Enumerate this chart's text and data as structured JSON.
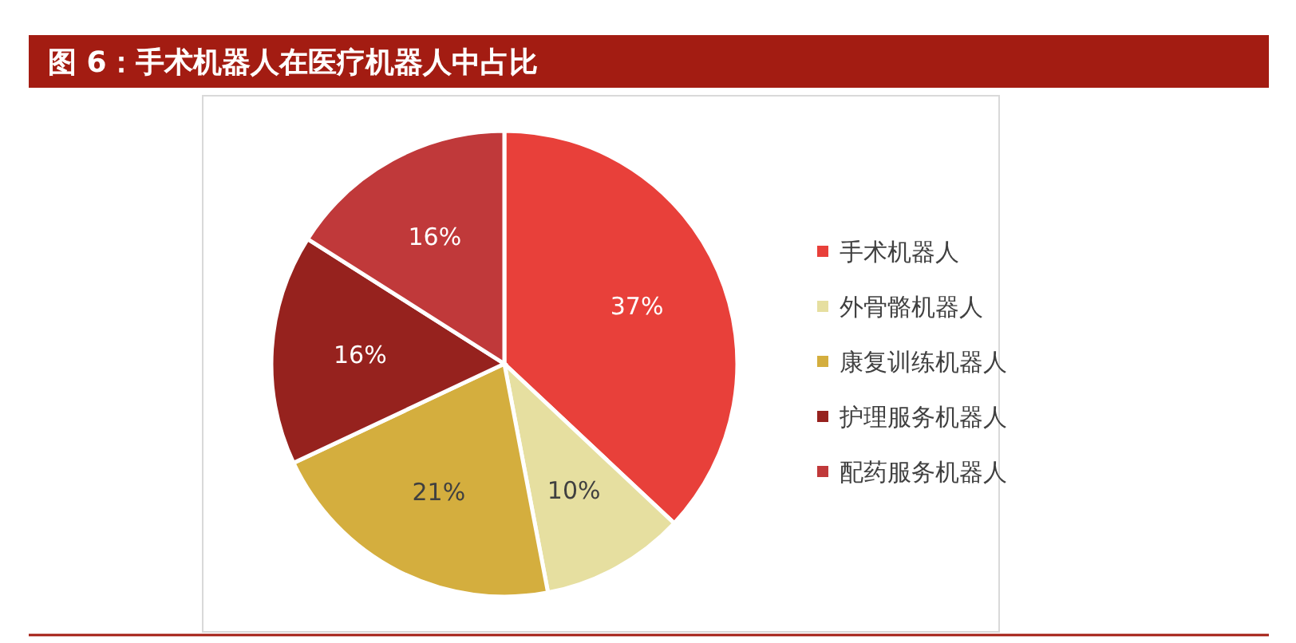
{
  "chart_data": {
    "type": "pie",
    "title": "图 6：手术机器人在医疗机器人中占比",
    "categories": [
      "手术机器人",
      "外骨骼机器人",
      "康复训练机器人",
      "护理服务机器人",
      "配药服务机器人"
    ],
    "values": [
      37,
      10,
      21,
      16,
      16
    ],
    "colors": [
      "#e8403a",
      "#e6dfa0",
      "#d4ae3e",
      "#96221e",
      "#c0393a"
    ],
    "value_labels": [
      "37%",
      "10%",
      "21%",
      "16%",
      "16%"
    ],
    "legend": "right"
  }
}
